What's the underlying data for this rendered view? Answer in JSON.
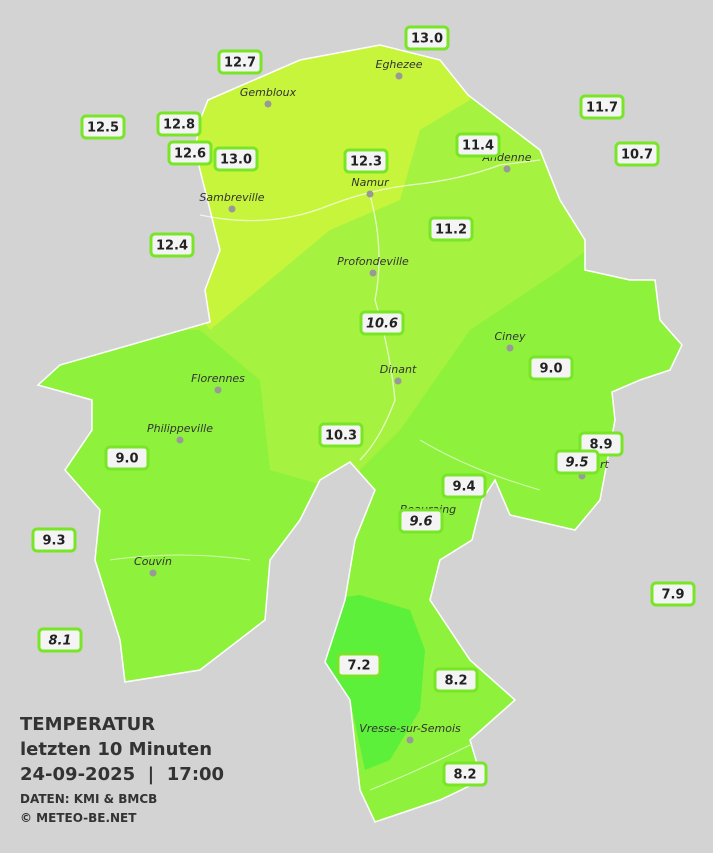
{
  "header": {
    "title": "TEMPERATUR",
    "subtitle": "letzten 10 Minuten",
    "datetime": "24-09-2025  |  17:00",
    "source": "DATEN: KMI & BMCB",
    "copyright": "© METEO-BE.NET"
  },
  "cities": [
    "Eghezee",
    "Gembloux",
    "Andenne",
    "Namur",
    "Sambreville",
    "Profondeville",
    "Ciney",
    "Florennes",
    "Dinant",
    "Philippeville",
    "Rochefort",
    "Beauraing",
    "Couvin",
    "Vresse-sur-Semois"
  ],
  "stations": [
    {
      "label": "13.0",
      "italic": false
    },
    {
      "label": "12.7",
      "italic": false
    },
    {
      "label": "12.5",
      "italic": false
    },
    {
      "label": "12.8",
      "italic": false
    },
    {
      "label": "12.6",
      "italic": false
    },
    {
      "label": "13.0",
      "italic": false
    },
    {
      "label": "12.3",
      "italic": false
    },
    {
      "label": "11.4",
      "italic": false
    },
    {
      "label": "11.7",
      "italic": false
    },
    {
      "label": "10.7",
      "italic": false
    },
    {
      "label": "12.4",
      "italic": false
    },
    {
      "label": "11.2",
      "italic": false
    },
    {
      "label": "10.6",
      "italic": true
    },
    {
      "label": "9.0",
      "italic": false
    },
    {
      "label": "10.3",
      "italic": false
    },
    {
      "label": "8.9",
      "italic": false
    },
    {
      "label": "9.5",
      "italic": true
    },
    {
      "label": "9.0",
      "italic": false
    },
    {
      "label": "9.4",
      "italic": false
    },
    {
      "label": "9.6",
      "italic": true
    },
    {
      "label": "9.3",
      "italic": false
    },
    {
      "label": "7.9",
      "italic": false
    },
    {
      "label": "8.1",
      "italic": true
    },
    {
      "label": "7.2",
      "italic": false
    },
    {
      "label": "8.2",
      "italic": false
    },
    {
      "label": "8.2",
      "italic": false
    }
  ]
}
